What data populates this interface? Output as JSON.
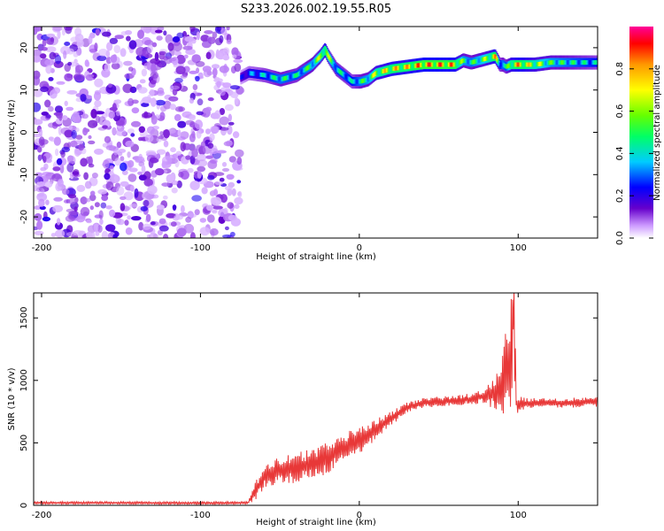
{
  "title": "S233.2026.002.19.55.R05",
  "chart_data": [
    {
      "type": "heatmap",
      "xlabel": "Height of straight line (km)",
      "ylabel": "Frequency (Hz)",
      "xlim": [
        -205,
        150
      ],
      "ylim": [
        -25,
        25
      ],
      "x_ticks": [
        -200,
        -100,
        0,
        100
      ],
      "x_tick_labels": [
        "-200",
        "-100",
        "0",
        "100"
      ],
      "y_ticks": [
        -20,
        -10,
        0,
        10,
        20
      ],
      "y_tick_labels": [
        "-20",
        "-10",
        "0",
        "10",
        "20"
      ],
      "noise_region_x": [
        -205,
        -75
      ],
      "ridge": {
        "x": [
          -75,
          -70,
          -60,
          -50,
          -40,
          -30,
          -25,
          -22,
          -20,
          -15,
          -10,
          -5,
          0,
          5,
          10,
          20,
          30,
          40,
          50,
          60,
          65,
          70,
          80,
          85,
          88,
          90,
          92,
          95,
          100,
          110,
          120,
          130,
          140,
          150
        ],
        "y": [
          13,
          14,
          13.5,
          12.5,
          13.5,
          16,
          18,
          19.5,
          18,
          15,
          13.5,
          12,
          12,
          12.5,
          14,
          15,
          15.5,
          16,
          16,
          16,
          17,
          16.5,
          17.5,
          18,
          16,
          16,
          15.5,
          16,
          16,
          16,
          16.5,
          16.5,
          16.5,
          16.5
        ],
        "amplitude": [
          0.25,
          0.35,
          0.45,
          0.55,
          0.5,
          0.6,
          0.7,
          0.85,
          0.7,
          0.5,
          0.5,
          0.45,
          0.55,
          0.6,
          0.75,
          0.85,
          0.85,
          0.95,
          0.95,
          0.9,
          0.6,
          0.55,
          0.7,
          0.9,
          0.45,
          0.55,
          0.5,
          0.8,
          0.9,
          0.75,
          0.6,
          0.55,
          0.5,
          0.45
        ]
      },
      "colorbar": {
        "label": "Normalized spectral amplitude",
        "range": [
          0,
          1
        ],
        "ticks": [
          0.0,
          0.2,
          0.4,
          0.6,
          0.8
        ],
        "tick_labels": [
          "0.0",
          "0.2",
          "0.4",
          "0.6",
          "0.8"
        ],
        "colors": [
          "#ffffff",
          "#cc99ff",
          "#6600cc",
          "#0000ff",
          "#00ccff",
          "#00ff66",
          "#66ff00",
          "#ffff00",
          "#ff9900",
          "#ff0000",
          "#ff0099"
        ]
      }
    },
    {
      "type": "line",
      "xlabel": "Height of straight line (km)",
      "ylabel": "SNR (10 * v/v)",
      "xlim": [
        -205,
        150
      ],
      "ylim": [
        0,
        1700
      ],
      "x_ticks": [
        -200,
        -100,
        0,
        100
      ],
      "x_tick_labels": [
        "-200",
        "-100",
        "0",
        "100"
      ],
      "y_ticks": [
        0,
        500,
        1000,
        1500
      ],
      "y_tick_labels": [
        "0",
        "500",
        "1000",
        "1500"
      ],
      "series": [
        {
          "name": "SNR",
          "color": "#e83838",
          "x": [
            -205,
            -150,
            -100,
            -70,
            -65,
            -60,
            -50,
            -40,
            -30,
            -20,
            -10,
            0,
            10,
            20,
            30,
            40,
            50,
            60,
            70,
            80,
            85,
            90,
            92,
            95,
            97,
            99,
            100,
            110,
            120,
            130,
            140,
            150
          ],
          "values": [
            20,
            20,
            18,
            20,
            120,
            230,
            280,
            300,
            330,
            380,
            460,
            520,
            600,
            700,
            780,
            820,
            830,
            840,
            850,
            880,
            900,
            950,
            1200,
            1100,
            1600,
            800,
            810,
            820,
            820,
            820,
            825,
            830
          ],
          "noise_amplitude": [
            10,
            10,
            10,
            10,
            80,
            100,
            110,
            120,
            120,
            130,
            120,
            110,
            90,
            60,
            45,
            40,
            40,
            40,
            45,
            60,
            150,
            300,
            300,
            400,
            500,
            120,
            60,
            40,
            40,
            40,
            40,
            40
          ]
        }
      ]
    }
  ]
}
